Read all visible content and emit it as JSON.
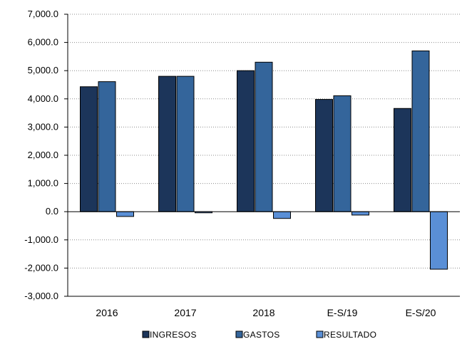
{
  "chart_data": {
    "type": "bar",
    "categories": [
      "2016",
      "2017",
      "2018",
      "E-S/19",
      "E-S/20"
    ],
    "series": [
      {
        "name": "INGRESOS",
        "values": [
          4430,
          4800,
          5000,
          3980,
          3660
        ],
        "color": "#1c355a"
      },
      {
        "name": "GASTOS",
        "values": [
          4610,
          4800,
          5300,
          4110,
          5700
        ],
        "color": "#34659b"
      },
      {
        "name": "RESULTADO",
        "values": [
          -170,
          -40,
          -240,
          -120,
          -2040
        ],
        "color": "#5a8fd6"
      }
    ],
    "y_ticks": [
      "7,000.0",
      "6,000.0",
      "5,000.0",
      "4,000.0",
      "3,000.0",
      "2,000.0",
      "1,000.0",
      "0.0",
      "-1,000.0",
      "-2,000.0",
      "-3,000.0"
    ],
    "ylim": [
      -3000,
      7000
    ],
    "grid": "dotted horizontal",
    "legend_position": "bottom",
    "title": "",
    "xlabel": "",
    "ylabel": ""
  }
}
